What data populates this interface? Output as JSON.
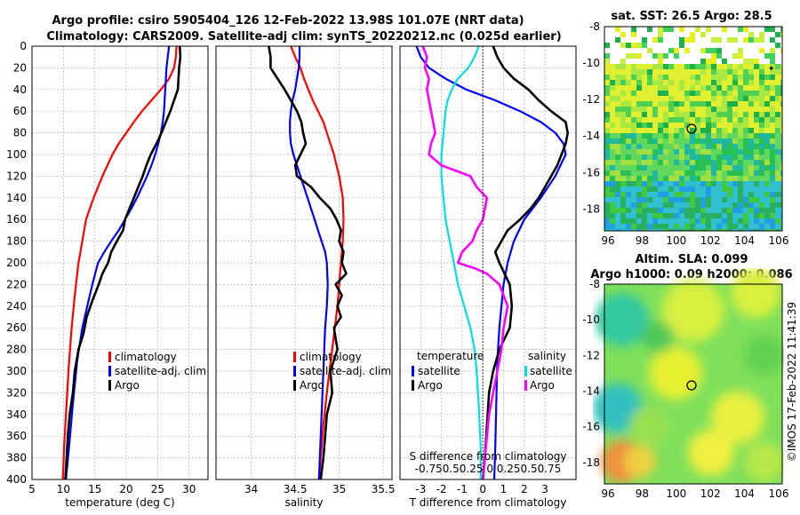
{
  "header": {
    "title_line1": "Argo profile: csiro 5905404_126 12-Feb-2022 13.98S 101.07E (NRT data)",
    "title_line2": "Climatology: CARS2009. Satellite-adj clim: synTS_20220212.nc (0.025d earlier)"
  },
  "colors": {
    "climatology": "#ff0000",
    "satellite": "#0000ff",
    "argo": "#000000",
    "sat_salinity": "#00e0e0",
    "argo_salinity": "#ff00ff"
  },
  "depth_axis": {
    "ticks": [
      0,
      20,
      40,
      60,
      80,
      100,
      120,
      140,
      160,
      180,
      200,
      220,
      240,
      260,
      280,
      300,
      320,
      340,
      360,
      380,
      400
    ],
    "range": [
      0,
      400
    ]
  },
  "chart_data": [
    {
      "id": "temperature",
      "type": "line",
      "xlabel": "temperature (deg C)",
      "xlim": [
        5,
        33
      ],
      "xticks": [
        5,
        10,
        15,
        20,
        25,
        30
      ],
      "legend": [
        "climatology",
        "satellite-adj. clim",
        "Argo"
      ],
      "series": [
        {
          "name": "climatology",
          "color": "#ff0000",
          "x": [
            28.0,
            27.9,
            27.6,
            26.8,
            25.5,
            24.0,
            22.5,
            21.2,
            20.0,
            18.8,
            17.8,
            17.0,
            16.2,
            15.5,
            14.8,
            14.2,
            13.6,
            13.0,
            12.4,
            11.8,
            11.3,
            10.8,
            10.4,
            10.1,
            9.9
          ],
          "depth": [
            0,
            10,
            20,
            30,
            40,
            50,
            60,
            70,
            80,
            90,
            100,
            110,
            120,
            130,
            140,
            150,
            160,
            180,
            200,
            230,
            260,
            300,
            340,
            370,
            400
          ]
        },
        {
          "name": "satellite-adj. clim",
          "color": "#0000ff",
          "x": [
            26.8,
            26.6,
            26.4,
            26.3,
            26.2,
            26.1,
            26.0,
            25.8,
            25.5,
            25.1,
            24.6,
            24.0,
            23.3,
            22.5,
            21.7,
            20.8,
            19.8,
            18.8,
            17.6,
            16.5,
            15.5,
            14.6,
            13.8,
            13.0,
            12.2,
            11.5,
            10.9,
            10.4
          ],
          "depth": [
            0,
            10,
            20,
            30,
            40,
            50,
            60,
            70,
            80,
            90,
            100,
            110,
            120,
            130,
            140,
            150,
            160,
            170,
            180,
            190,
            200,
            220,
            240,
            260,
            290,
            330,
            370,
            400
          ]
        },
        {
          "name": "Argo",
          "color": "#000000",
          "x": [
            28.5,
            28.6,
            28.4,
            28.3,
            28.2,
            27.6,
            27.0,
            26.3,
            25.6,
            24.8,
            23.9,
            23.2,
            22.6,
            21.9,
            21.2,
            20.5,
            19.8,
            19.5,
            18.5,
            17.6,
            17.1,
            16.2,
            15.6,
            14.6,
            13.7,
            13.2,
            12.4,
            11.8,
            11.5,
            11.0,
            10.7,
            10.5,
            10.3
          ],
          "depth": [
            0,
            10,
            20,
            30,
            40,
            50,
            60,
            70,
            80,
            90,
            100,
            110,
            120,
            130,
            140,
            150,
            160,
            170,
            180,
            190,
            200,
            210,
            220,
            235,
            250,
            265,
            280,
            300,
            320,
            340,
            360,
            380,
            400
          ]
        }
      ]
    },
    {
      "id": "salinity",
      "type": "line",
      "xlabel": "salinity",
      "xlim": [
        33.6,
        35.6
      ],
      "xticks": [
        34,
        34.5,
        35,
        35.5
      ],
      "legend": [
        "climatology",
        "satellite-adj. clim",
        "Argo"
      ],
      "series": [
        {
          "name": "climatology",
          "color": "#ff0000",
          "x": [
            34.45,
            34.5,
            34.56,
            34.6,
            34.65,
            34.7,
            34.76,
            34.82,
            34.86,
            34.9,
            34.94,
            34.97,
            35.0,
            35.02,
            35.04,
            35.05,
            35.04,
            35.02,
            35.0,
            34.98,
            34.95,
            34.92,
            34.89,
            34.86,
            34.82,
            34.79,
            34.77
          ],
          "depth": [
            0,
            10,
            20,
            30,
            40,
            50,
            60,
            70,
            80,
            90,
            100,
            110,
            120,
            130,
            140,
            160,
            180,
            200,
            220,
            240,
            260,
            280,
            300,
            320,
            350,
            380,
            400
          ]
        },
        {
          "name": "satellite-adj. clim",
          "color": "#0000ff",
          "x": [
            34.55,
            34.55,
            34.54,
            34.52,
            34.5,
            34.47,
            34.45,
            34.44,
            34.44,
            34.45,
            34.48,
            34.52,
            34.56,
            34.6,
            34.64,
            34.68,
            34.72,
            34.76,
            34.8,
            34.84,
            34.86,
            34.87,
            34.86,
            34.84,
            34.82,
            34.8,
            34.78,
            34.77
          ],
          "depth": [
            0,
            10,
            20,
            30,
            40,
            50,
            60,
            70,
            80,
            90,
            100,
            110,
            120,
            130,
            140,
            150,
            160,
            170,
            180,
            190,
            200,
            220,
            240,
            260,
            300,
            340,
            380,
            400
          ]
        },
        {
          "name": "Argo",
          "color": "#000000",
          "x": [
            34.2,
            34.22,
            34.22,
            34.3,
            34.38,
            34.45,
            34.52,
            34.57,
            34.59,
            34.62,
            34.56,
            34.5,
            34.52,
            34.68,
            34.78,
            34.9,
            34.97,
            35.02,
            35.0,
            35.05,
            35.03,
            35.08,
            34.96,
            35.03,
            34.98,
            35.02,
            34.94,
            34.98,
            34.9,
            34.92,
            34.86,
            34.84,
            34.82,
            34.79
          ],
          "depth": [
            0,
            10,
            20,
            30,
            40,
            50,
            60,
            70,
            80,
            90,
            100,
            110,
            120,
            130,
            140,
            150,
            160,
            170,
            180,
            190,
            200,
            210,
            220,
            230,
            240,
            250,
            260,
            280,
            300,
            320,
            340,
            360,
            380,
            400
          ]
        }
      ]
    },
    {
      "id": "differences",
      "type": "line",
      "xlabel": "T difference from climatology",
      "xlim": [
        -4,
        4.5
      ],
      "xticks": [
        -3,
        -2,
        -1,
        0,
        1,
        2,
        3
      ],
      "top_label": "S difference from climatology",
      "top_ticklabels": "-0.750.50.25  0 0.250.50.75",
      "legend_temperature": {
        "title": "temperature",
        "items": [
          "satellite",
          "Argo"
        ]
      },
      "legend_salinity": {
        "title": "salinity",
        "items": [
          "satellite",
          "Argo"
        ]
      },
      "series": [
        {
          "name": "T satellite",
          "color": "#0000ff",
          "x": [
            -3.2,
            -3.0,
            -2.6,
            -1.8,
            -0.8,
            0.6,
            1.8,
            2.8,
            3.5,
            3.9,
            4.0,
            3.5,
            2.8,
            2.0,
            1.5,
            1.2,
            1.0,
            0.9,
            0.8,
            0.7,
            0.65,
            0.6,
            0.55
          ],
          "depth": [
            0,
            10,
            20,
            30,
            40,
            50,
            60,
            70,
            80,
            90,
            100,
            120,
            140,
            160,
            180,
            200,
            220,
            240,
            260,
            290,
            330,
            370,
            400
          ]
        },
        {
          "name": "T Argo",
          "color": "#000000",
          "x": [
            0.5,
            0.7,
            1.0,
            1.5,
            2.2,
            2.7,
            3.3,
            4.0,
            4.1,
            4.0,
            3.8,
            3.6,
            3.3,
            3.0,
            2.7,
            2.3,
            1.8,
            1.2,
            0.9,
            0.6,
            0.8,
            1.3,
            1.4,
            1.3,
            0.8,
            0.5,
            0.3,
            0.2,
            0.1,
            0.0
          ],
          "depth": [
            0,
            10,
            20,
            30,
            40,
            50,
            60,
            70,
            80,
            90,
            100,
            110,
            120,
            130,
            140,
            150,
            160,
            170,
            180,
            190,
            200,
            220,
            240,
            260,
            280,
            300,
            320,
            350,
            380,
            400
          ]
        },
        {
          "name": "S satellite",
          "color": "#00e0e0",
          "x": [
            -0.2,
            -0.4,
            -0.7,
            -1.2,
            -1.5,
            -1.7,
            -1.8,
            -1.9,
            -2.0,
            -2.0,
            -1.9,
            -1.8,
            -1.6,
            -1.4,
            -1.2,
            -0.9,
            -0.6,
            -0.4,
            -0.3,
            -0.2,
            -0.1,
            -0.1
          ],
          "depth": [
            0,
            10,
            20,
            30,
            40,
            50,
            60,
            80,
            100,
            120,
            140,
            160,
            180,
            200,
            220,
            240,
            260,
            280,
            300,
            330,
            370,
            400
          ]
        },
        {
          "name": "S Argo",
          "color": "#ff00ff",
          "x": [
            -2.9,
            -2.7,
            -2.8,
            -2.6,
            -2.7,
            -2.6,
            -2.5,
            -2.4,
            -2.3,
            -2.5,
            -2.6,
            -2.0,
            -0.6,
            -0.3,
            0.2,
            0.0,
            -0.3,
            -0.5,
            -1.0,
            -1.2,
            -0.4,
            0.2,
            0.8,
            1.2,
            1.0,
            0.9,
            0.7,
            0.5,
            0.3,
            0.2,
            0.1,
            0.0
          ],
          "depth": [
            0,
            10,
            20,
            30,
            40,
            50,
            60,
            70,
            80,
            90,
            100,
            110,
            120,
            130,
            140,
            160,
            170,
            180,
            190,
            200,
            205,
            210,
            220,
            240,
            260,
            280,
            300,
            320,
            340,
            360,
            380,
            400
          ]
        },
        {
          "name": "zero",
          "color": "#000000",
          "x": [
            0,
            0
          ],
          "depth": [
            0,
            400
          ]
        }
      ]
    }
  ],
  "maps": [
    {
      "id": "sst",
      "title": "sat. SST: 26.5 Argo: 28.5",
      "xticks": [
        "96",
        "98",
        "100",
        "102",
        "104",
        "106"
      ],
      "yticks": [
        "-8",
        "-10",
        "-12",
        "-14",
        "-16",
        "-18"
      ]
    },
    {
      "id": "sla",
      "title1": "Altim. SLA: 0.099",
      "title2": "Argo h1000: 0.09 h2000: 0.086",
      "xticks": [
        "96",
        "98",
        "100",
        "102",
        "104",
        "106"
      ],
      "yticks": [
        "-8",
        "-10",
        "-12",
        "-14",
        "-16",
        "-18"
      ]
    }
  ],
  "footer": {
    "stamp": "©IMOS 17-Feb-2022 11:41:39"
  }
}
